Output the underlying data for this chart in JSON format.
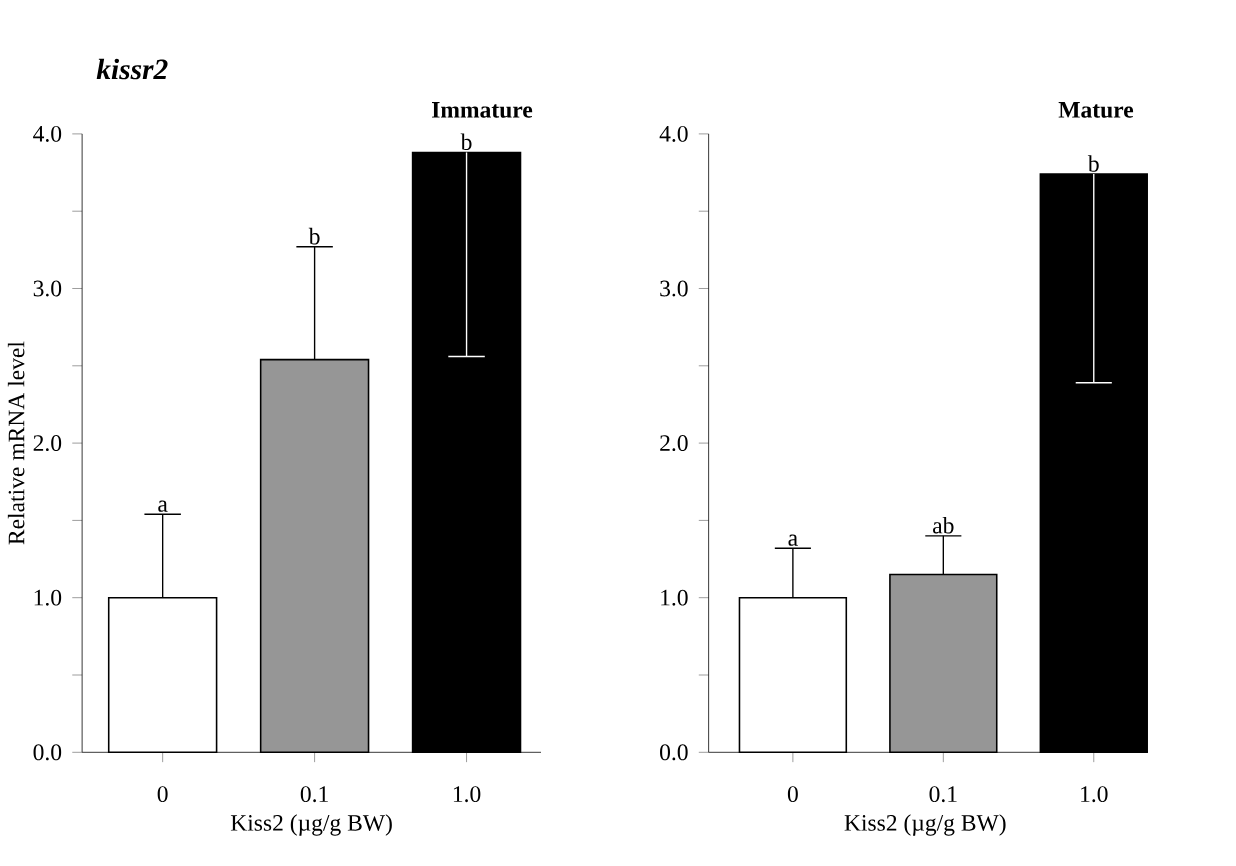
{
  "chart_data": [
    {
      "type": "bar",
      "title": "Immature",
      "xlabel": "Kiss2 (µg/g BW)",
      "ylabel": "Relative mRNA level",
      "categories": [
        "0",
        "0.1",
        "1.0"
      ],
      "values": [
        1.0,
        2.54,
        3.88
      ],
      "colors": [
        "#ffffff",
        "#969696",
        "#000000"
      ],
      "errors": [
        [
          1.0,
          1.54
        ],
        [
          2.54,
          3.27
        ],
        [
          2.56,
          3.88
        ]
      ],
      "ylim": [
        0,
        4
      ],
      "yticks": [
        {
          "value": 0,
          "label": "0.0"
        },
        {
          "value": 0.5,
          "label": null
        },
        {
          "value": 1,
          "label": "1.0"
        },
        {
          "value": 1.5,
          "label": null
        },
        {
          "value": 2,
          "label": "2.0"
        },
        {
          "value": 2.5,
          "label": null
        },
        {
          "value": 3,
          "label": "3.0"
        },
        {
          "value": 3.5,
          "label": null
        },
        {
          "value": 4,
          "label": "4.0"
        }
      ],
      "annotations": [
        "kissr2",
        {
          "text": "a",
          "x": "0",
          "y": 1.54
        },
        {
          "text": "b",
          "x": "0.1",
          "y": 3.27
        },
        {
          "text": "b",
          "x": "1.0",
          "y": 3.88
        }
      ]
    },
    {
      "type": "bar",
      "title": "Mature",
      "xlabel": "Kiss2 (µg/g BW)",
      "categories": [
        "0",
        "0.1",
        "1.0"
      ],
      "values": [
        1.0,
        1.15,
        3.74
      ],
      "colors": [
        "#ffffff",
        "#969696",
        "#000000"
      ],
      "errors": [
        [
          1.0,
          1.32
        ],
        [
          1.15,
          1.4
        ],
        [
          2.39,
          3.74
        ]
      ],
      "ylim": [
        0,
        4
      ],
      "yticks": [
        {
          "value": 0,
          "label": "0.0"
        },
        {
          "value": 0.5,
          "label": null
        },
        {
          "value": 1,
          "label": "1.0"
        },
        {
          "value": 1.5,
          "label": null
        },
        {
          "value": 2,
          "label": "2.0"
        },
        {
          "value": 2.5,
          "label": null
        },
        {
          "value": 3,
          "label": "3.0"
        },
        {
          "value": 3.5,
          "label": null
        },
        {
          "value": 4,
          "label": "4.0"
        }
      ],
      "annotations": [
        {
          "text": "a",
          "x": "0",
          "y": 1.32
        },
        {
          "text": "ab",
          "x": "0.1",
          "y": 1.4
        },
        {
          "text": "b",
          "x": "1.0",
          "y": 3.74
        }
      ]
    }
  ]
}
